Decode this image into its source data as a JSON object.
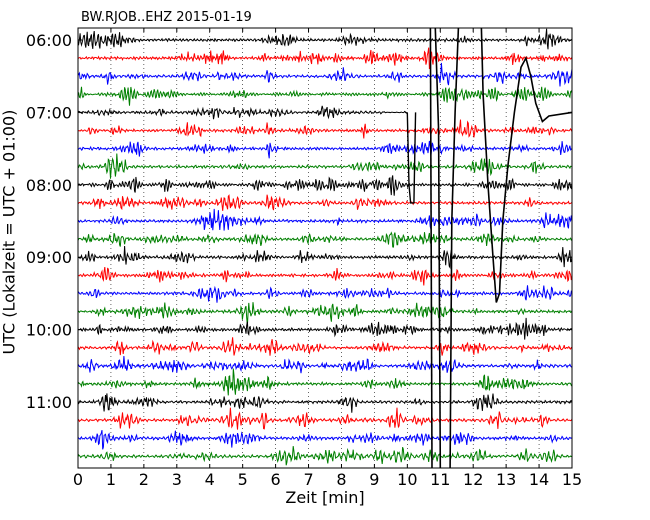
{
  "chart_data": {
    "type": "line",
    "title": "BW.RJOB..EHZ 2015-01-19",
    "xlabel": "Zeit  [min]",
    "ylabel": "UTC (Lokalzeit = UTC + 01:00)",
    "xlim": [
      0,
      15
    ],
    "x_ticks": [
      "0",
      "1",
      "2",
      "3",
      "4",
      "5",
      "6",
      "7",
      "8",
      "9",
      "10",
      "11",
      "12",
      "13",
      "14",
      "15"
    ],
    "hour_labels": [
      "06:00",
      "07:00",
      "08:00",
      "09:00",
      "10:00",
      "11:00"
    ],
    "rows_per_hour": 4,
    "row_count": 24,
    "row_colors": [
      "#000000",
      "#ff0000",
      "#0000ff",
      "#008000"
    ],
    "grid": "vertical dotted at each minute",
    "events": [
      {
        "name": "baseline offset",
        "start_row": 4,
        "start_min": 9.9,
        "end_row": 9,
        "end_min": 10.3
      },
      {
        "name": "large transient",
        "start_min": 10.4,
        "end_min": 13.9,
        "peak_row": 1.5,
        "trough_row": 14.5
      }
    ]
  }
}
